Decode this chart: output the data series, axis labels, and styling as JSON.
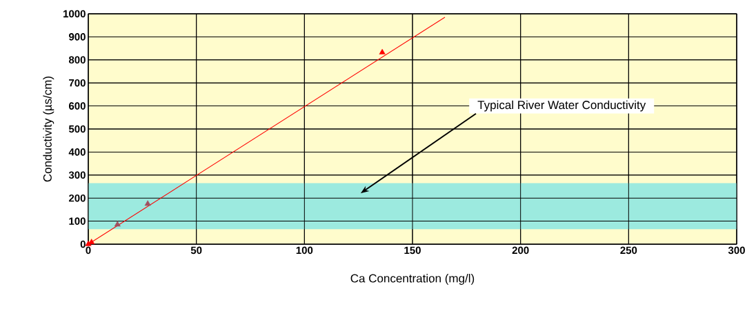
{
  "chart_data": {
    "type": "scatter",
    "xlabel": "Ca Concentration (mg/l)",
    "ylabel": "Conductivity (µs/cm)",
    "xlim": [
      0,
      300
    ],
    "ylim": [
      0,
      1000
    ],
    "xticks": [
      0,
      50,
      100,
      150,
      200,
      250,
      300
    ],
    "yticks": [
      0,
      100,
      200,
      300,
      400,
      500,
      600,
      700,
      800,
      900,
      1000
    ],
    "grid": true,
    "marker": "triangle",
    "series": [
      {
        "color": "#ff0000",
        "x": [
          0,
          1.5,
          136
        ],
        "values": [
          0,
          8,
          832
        ]
      },
      {
        "color": "#a05060",
        "x": [
          13.5,
          27.5
        ],
        "values": [
          85,
          175
        ]
      },
      {
        "type": "line",
        "color": "#ff0000",
        "marker": "none",
        "x": [
          0,
          165
        ],
        "values": [
          0,
          985
        ]
      }
    ],
    "bands": [
      {
        "axis": "y",
        "from": 65,
        "to": 265,
        "color": "#9ceadf"
      }
    ],
    "annotations": [
      "Typical River Water Conductivity"
    ]
  }
}
